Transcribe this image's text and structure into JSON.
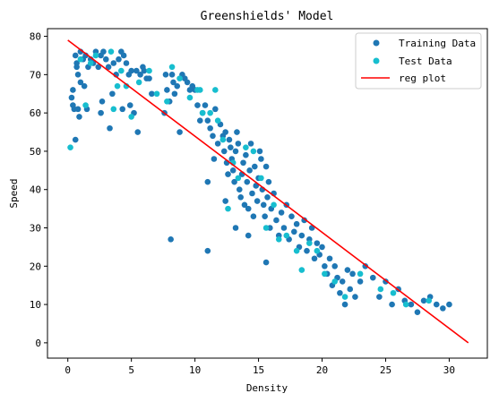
{
  "chart_data": {
    "type": "scatter",
    "title": "Greenshields' Model",
    "xlabel": "Density",
    "ylabel": "Speed",
    "xlim": [
      -1.6,
      33.0
    ],
    "ylim": [
      -4,
      82
    ],
    "xticks": [
      0,
      5,
      10,
      15,
      20,
      25,
      30
    ],
    "yticks": [
      0,
      10,
      20,
      30,
      40,
      50,
      60,
      70,
      80
    ],
    "grid": false,
    "legend_position": "top-right",
    "colors": {
      "training": "#1f77b4",
      "test": "#17becf",
      "reg": "#ff0000"
    },
    "series": [
      {
        "name": "Training Data",
        "kind": "scatter",
        "points": [
          [
            0.3,
            64
          ],
          [
            0.4,
            62
          ],
          [
            0.5,
            61
          ],
          [
            0.4,
            66
          ],
          [
            0.6,
            75
          ],
          [
            0.7,
            73
          ],
          [
            0.8,
            70
          ],
          [
            0.9,
            59
          ],
          [
            1.0,
            68
          ],
          [
            0.8,
            61
          ],
          [
            0.6,
            53
          ],
          [
            0.7,
            72
          ],
          [
            1.0,
            76
          ],
          [
            1.2,
            74
          ],
          [
            1.3,
            67
          ],
          [
            1.5,
            61
          ],
          [
            1.4,
            75
          ],
          [
            1.6,
            72
          ],
          [
            1.8,
            74
          ],
          [
            2.0,
            73
          ],
          [
            2.2,
            76
          ],
          [
            2.4,
            72
          ],
          [
            2.6,
            75
          ],
          [
            2.8,
            76
          ],
          [
            3.0,
            74
          ],
          [
            3.2,
            72
          ],
          [
            2.6,
            60
          ],
          [
            2.7,
            63
          ],
          [
            3.3,
            56
          ],
          [
            3.5,
            65
          ],
          [
            3.6,
            73
          ],
          [
            3.8,
            70
          ],
          [
            4.0,
            74
          ],
          [
            4.2,
            76
          ],
          [
            4.4,
            75
          ],
          [
            4.3,
            61
          ],
          [
            4.6,
            73
          ],
          [
            4.8,
            70
          ],
          [
            4.9,
            62
          ],
          [
            5.0,
            71
          ],
          [
            5.2,
            60
          ],
          [
            5.4,
            71
          ],
          [
            5.5,
            55
          ],
          [
            5.7,
            70
          ],
          [
            5.9,
            72
          ],
          [
            6.0,
            71
          ],
          [
            6.2,
            69
          ],
          [
            6.4,
            69
          ],
          [
            6.6,
            65
          ],
          [
            7.6,
            60
          ],
          [
            7.7,
            70
          ],
          [
            7.8,
            66
          ],
          [
            8.0,
            63
          ],
          [
            8.2,
            70
          ],
          [
            8.3,
            68
          ],
          [
            8.4,
            65
          ],
          [
            8.6,
            67
          ],
          [
            8.8,
            55
          ],
          [
            9.0,
            70
          ],
          [
            9.2,
            69
          ],
          [
            9.4,
            68
          ],
          [
            9.6,
            66
          ],
          [
            9.8,
            67
          ],
          [
            10.0,
            66
          ],
          [
            10.2,
            62
          ],
          [
            10.4,
            58
          ],
          [
            10.6,
            60
          ],
          [
            10.8,
            62
          ],
          [
            11.0,
            58
          ],
          [
            11.2,
            56
          ],
          [
            11.4,
            54
          ],
          [
            11.0,
            42
          ],
          [
            11.5,
            48
          ],
          [
            11.6,
            61
          ],
          [
            11.8,
            52
          ],
          [
            12.0,
            57
          ],
          [
            12.2,
            54
          ],
          [
            12.3,
            50
          ],
          [
            12.4,
            55
          ],
          [
            12.5,
            47
          ],
          [
            12.6,
            44
          ],
          [
            12.7,
            53
          ],
          [
            12.8,
            51
          ],
          [
            12.9,
            48
          ],
          [
            13.0,
            45
          ],
          [
            13.1,
            42
          ],
          [
            13.2,
            50
          ],
          [
            13.3,
            55
          ],
          [
            13.4,
            52
          ],
          [
            13.5,
            40
          ],
          [
            13.6,
            38
          ],
          [
            13.7,
            44
          ],
          [
            13.8,
            47
          ],
          [
            13.9,
            36
          ],
          [
            14.0,
            49
          ],
          [
            14.1,
            42
          ],
          [
            14.2,
            35
          ],
          [
            14.3,
            45
          ],
          [
            14.4,
            52
          ],
          [
            14.5,
            39
          ],
          [
            14.6,
            33
          ],
          [
            14.7,
            46
          ],
          [
            14.8,
            41
          ],
          [
            14.9,
            37
          ],
          [
            15.0,
            43
          ],
          [
            15.1,
            50
          ],
          [
            15.2,
            48
          ],
          [
            15.3,
            40
          ],
          [
            15.4,
            36
          ],
          [
            15.5,
            33
          ],
          [
            15.6,
            46
          ],
          [
            15.7,
            38
          ],
          [
            15.8,
            42
          ],
          [
            15.9,
            30
          ],
          [
            16.0,
            35
          ],
          [
            16.2,
            39
          ],
          [
            16.4,
            32
          ],
          [
            16.6,
            28
          ],
          [
            16.8,
            34
          ],
          [
            17.0,
            30
          ],
          [
            17.2,
            36
          ],
          [
            17.4,
            27
          ],
          [
            17.6,
            33
          ],
          [
            17.8,
            29
          ],
          [
            18.0,
            31
          ],
          [
            18.2,
            25
          ],
          [
            18.4,
            28
          ],
          [
            18.6,
            32
          ],
          [
            18.8,
            24
          ],
          [
            19.0,
            27
          ],
          [
            19.2,
            30
          ],
          [
            19.4,
            22
          ],
          [
            19.6,
            26
          ],
          [
            19.8,
            23
          ],
          [
            20.0,
            25
          ],
          [
            20.2,
            20
          ],
          [
            20.4,
            18
          ],
          [
            20.6,
            22
          ],
          [
            20.8,
            15
          ],
          [
            21.0,
            20
          ],
          [
            21.2,
            17
          ],
          [
            21.4,
            13
          ],
          [
            21.6,
            16
          ],
          [
            21.8,
            10
          ],
          [
            22.0,
            19
          ],
          [
            22.2,
            14
          ],
          [
            22.4,
            18
          ],
          [
            22.6,
            12
          ],
          [
            23.0,
            16
          ],
          [
            23.4,
            20
          ],
          [
            24.0,
            17
          ],
          [
            24.5,
            12
          ],
          [
            25.0,
            16
          ],
          [
            25.5,
            10
          ],
          [
            26.0,
            14
          ],
          [
            26.5,
            11
          ],
          [
            27.0,
            10
          ],
          [
            27.5,
            8
          ],
          [
            28.0,
            11
          ],
          [
            28.5,
            12
          ],
          [
            29.0,
            10
          ],
          [
            29.5,
            9
          ],
          [
            30.0,
            10
          ],
          [
            8.1,
            27
          ],
          [
            11.0,
            24
          ],
          [
            15.6,
            21
          ],
          [
            14.2,
            28
          ],
          [
            13.2,
            30
          ],
          [
            12.4,
            37
          ]
        ]
      },
      {
        "name": "Test Data",
        "kind": "scatter",
        "points": [
          [
            0.2,
            51
          ],
          [
            1.0,
            74
          ],
          [
            1.4,
            62
          ],
          [
            1.8,
            73
          ],
          [
            2.2,
            75
          ],
          [
            3.4,
            76
          ],
          [
            3.6,
            61
          ],
          [
            3.9,
            67
          ],
          [
            4.2,
            71
          ],
          [
            4.6,
            67
          ],
          [
            5.0,
            59
          ],
          [
            5.6,
            68
          ],
          [
            6.4,
            71
          ],
          [
            7.0,
            65
          ],
          [
            7.8,
            63
          ],
          [
            8.2,
            72
          ],
          [
            8.8,
            69
          ],
          [
            9.6,
            64
          ],
          [
            10.2,
            66
          ],
          [
            10.6,
            60
          ],
          [
            11.2,
            60
          ],
          [
            11.6,
            66
          ],
          [
            12.2,
            53
          ],
          [
            12.6,
            35
          ],
          [
            13.0,
            47
          ],
          [
            13.4,
            43
          ],
          [
            14.0,
            51
          ],
          [
            14.6,
            50
          ],
          [
            15.2,
            43
          ],
          [
            15.6,
            30
          ],
          [
            16.2,
            36
          ],
          [
            16.6,
            27
          ],
          [
            17.2,
            28
          ],
          [
            18.0,
            24
          ],
          [
            18.4,
            19
          ],
          [
            19.0,
            26
          ],
          [
            19.6,
            24
          ],
          [
            20.2,
            18
          ],
          [
            21.0,
            16
          ],
          [
            21.8,
            12
          ],
          [
            23.0,
            18
          ],
          [
            24.6,
            14
          ],
          [
            25.6,
            13
          ],
          [
            26.6,
            10
          ],
          [
            28.4,
            11
          ],
          [
            10.4,
            66
          ],
          [
            11.8,
            58
          ]
        ]
      },
      {
        "name": "reg plot",
        "kind": "line",
        "points": [
          [
            0,
            79
          ],
          [
            31.5,
            0
          ]
        ]
      }
    ]
  }
}
